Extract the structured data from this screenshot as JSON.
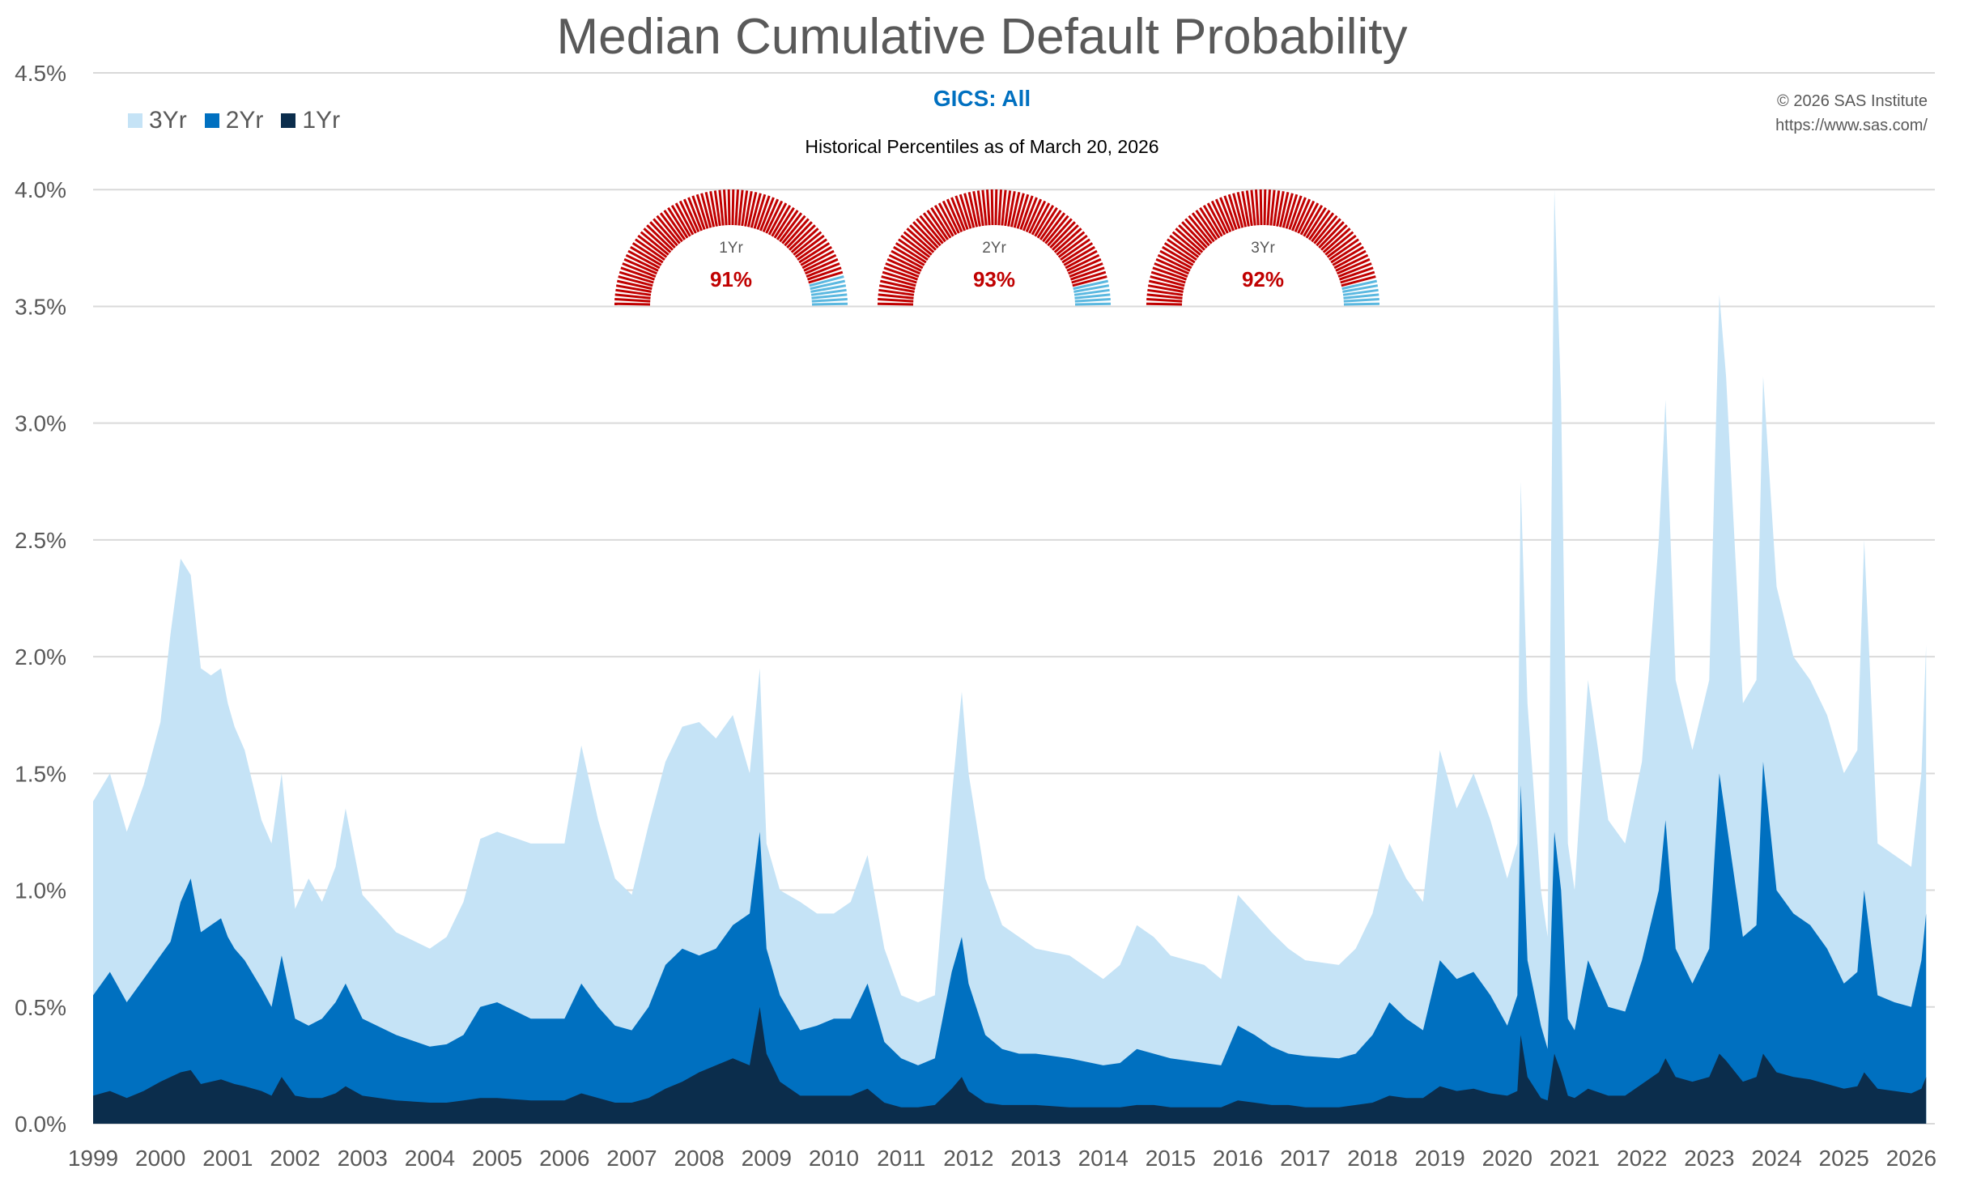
{
  "chart_data": {
    "type": "area",
    "title": "Median Cumulative Default Probability",
    "subtitle": "GICS: All",
    "note": "Historical Percentiles as of March 20, 2026",
    "copyright": [
      "© 2026 SAS Institute",
      "https://www.sas.com/"
    ],
    "xlabel": "",
    "ylabel": "",
    "xlim": [
      1999,
      2026.35
    ],
    "ylim": [
      0,
      4.5
    ],
    "y_ticks": [
      "0.0%",
      "0.5%",
      "1.0%",
      "1.5%",
      "2.0%",
      "2.5%",
      "3.0%",
      "3.5%",
      "4.0%",
      "4.5%"
    ],
    "x_ticks": [
      "1999",
      "2000",
      "2001",
      "2002",
      "2003",
      "2004",
      "2005",
      "2006",
      "2007",
      "2008",
      "2009",
      "2010",
      "2011",
      "2012",
      "2013",
      "2014",
      "2015",
      "2016",
      "2017",
      "2018",
      "2019",
      "2020",
      "2021",
      "2022",
      "2023",
      "2024",
      "2025",
      "2026"
    ],
    "legend": [
      "3Yr",
      "2Yr",
      "1Yr"
    ],
    "x": [
      1999.0,
      1999.25,
      1999.5,
      1999.75,
      2000.0,
      2000.15,
      2000.3,
      2000.45,
      2000.6,
      2000.75,
      2000.9,
      2001.0,
      2001.1,
      2001.25,
      2001.5,
      2001.65,
      2001.8,
      2002.0,
      2002.2,
      2002.4,
      2002.6,
      2002.75,
      2003.0,
      2003.5,
      2004.0,
      2004.25,
      2004.5,
      2004.75,
      2005.0,
      2005.5,
      2006.0,
      2006.25,
      2006.5,
      2006.75,
      2007.0,
      2007.25,
      2007.5,
      2007.75,
      2008.0,
      2008.25,
      2008.5,
      2008.75,
      2008.9,
      2009.0,
      2009.2,
      2009.5,
      2009.75,
      2010.0,
      2010.25,
      2010.5,
      2010.75,
      2011.0,
      2011.25,
      2011.5,
      2011.75,
      2011.9,
      2012.0,
      2012.25,
      2012.5,
      2012.75,
      2013.0,
      2013.5,
      2014.0,
      2014.25,
      2014.5,
      2014.75,
      2015.0,
      2015.5,
      2015.75,
      2016.0,
      2016.25,
      2016.5,
      2016.75,
      2017.0,
      2017.5,
      2017.75,
      2018.0,
      2018.25,
      2018.5,
      2018.75,
      2019.0,
      2019.25,
      2019.5,
      2019.75,
      2020.0,
      2020.15,
      2020.2,
      2020.3,
      2020.5,
      2020.6,
      2020.7,
      2020.8,
      2020.9,
      2021.0,
      2021.2,
      2021.5,
      2021.75,
      2022.0,
      2022.25,
      2022.35,
      2022.5,
      2022.75,
      2023.0,
      2023.15,
      2023.25,
      2023.5,
      2023.7,
      2023.8,
      2024.0,
      2024.25,
      2024.5,
      2024.75,
      2025.0,
      2025.2,
      2025.3,
      2025.5,
      2025.75,
      2026.0,
      2026.15,
      2026.22
    ],
    "series": [
      {
        "name": "3Yr",
        "color": "#C5E3F6",
        "values": [
          1.38,
          1.5,
          1.25,
          1.45,
          1.72,
          2.1,
          2.42,
          2.35,
          1.95,
          1.92,
          1.95,
          1.8,
          1.7,
          1.6,
          1.3,
          1.2,
          1.5,
          0.92,
          1.05,
          0.95,
          1.1,
          1.35,
          0.98,
          0.82,
          0.75,
          0.8,
          0.95,
          1.22,
          1.25,
          1.2,
          1.2,
          1.62,
          1.3,
          1.05,
          0.98,
          1.28,
          1.55,
          1.7,
          1.72,
          1.65,
          1.75,
          1.5,
          1.95,
          1.2,
          1.0,
          0.95,
          0.9,
          0.9,
          0.95,
          1.15,
          0.75,
          0.55,
          0.52,
          0.55,
          1.4,
          1.85,
          1.5,
          1.05,
          0.85,
          0.8,
          0.75,
          0.72,
          0.62,
          0.68,
          0.85,
          0.8,
          0.72,
          0.68,
          0.62,
          0.98,
          0.9,
          0.82,
          0.75,
          0.7,
          0.68,
          0.75,
          0.9,
          1.2,
          1.05,
          0.95,
          1.6,
          1.35,
          1.5,
          1.3,
          1.05,
          1.2,
          2.75,
          1.8,
          1.0,
          0.8,
          4.0,
          3.1,
          1.2,
          1.0,
          1.9,
          1.3,
          1.2,
          1.55,
          2.5,
          3.1,
          1.9,
          1.6,
          1.9,
          3.55,
          3.2,
          1.8,
          1.9,
          3.2,
          2.3,
          2.0,
          1.9,
          1.75,
          1.5,
          1.6,
          2.5,
          1.2,
          1.15,
          1.1,
          1.5,
          2.05
        ]
      },
      {
        "name": "2Yr",
        "color": "#0070C0",
        "values": [
          0.55,
          0.65,
          0.52,
          0.62,
          0.72,
          0.78,
          0.95,
          1.05,
          0.82,
          0.85,
          0.88,
          0.8,
          0.75,
          0.7,
          0.58,
          0.5,
          0.72,
          0.45,
          0.42,
          0.45,
          0.52,
          0.6,
          0.45,
          0.38,
          0.33,
          0.34,
          0.38,
          0.5,
          0.52,
          0.45,
          0.45,
          0.6,
          0.5,
          0.42,
          0.4,
          0.5,
          0.68,
          0.75,
          0.72,
          0.75,
          0.85,
          0.9,
          1.25,
          0.75,
          0.55,
          0.4,
          0.42,
          0.45,
          0.45,
          0.6,
          0.35,
          0.28,
          0.25,
          0.28,
          0.65,
          0.8,
          0.6,
          0.38,
          0.32,
          0.3,
          0.3,
          0.28,
          0.25,
          0.26,
          0.32,
          0.3,
          0.28,
          0.26,
          0.25,
          0.42,
          0.38,
          0.33,
          0.3,
          0.29,
          0.28,
          0.3,
          0.38,
          0.52,
          0.45,
          0.4,
          0.7,
          0.62,
          0.65,
          0.55,
          0.42,
          0.55,
          1.45,
          0.7,
          0.42,
          0.32,
          1.25,
          1.0,
          0.45,
          0.4,
          0.7,
          0.5,
          0.48,
          0.7,
          1.0,
          1.3,
          0.75,
          0.6,
          0.75,
          1.5,
          1.3,
          0.8,
          0.85,
          1.55,
          1.0,
          0.9,
          0.85,
          0.75,
          0.6,
          0.65,
          1.0,
          0.55,
          0.52,
          0.5,
          0.7,
          0.9
        ]
      },
      {
        "name": "1Yr",
        "color": "#0B2D4C",
        "values": [
          0.12,
          0.14,
          0.11,
          0.14,
          0.18,
          0.2,
          0.22,
          0.23,
          0.17,
          0.18,
          0.19,
          0.18,
          0.17,
          0.16,
          0.14,
          0.12,
          0.2,
          0.12,
          0.11,
          0.11,
          0.13,
          0.16,
          0.12,
          0.1,
          0.09,
          0.09,
          0.1,
          0.11,
          0.11,
          0.1,
          0.1,
          0.13,
          0.11,
          0.09,
          0.09,
          0.11,
          0.15,
          0.18,
          0.22,
          0.25,
          0.28,
          0.25,
          0.5,
          0.3,
          0.18,
          0.12,
          0.12,
          0.12,
          0.12,
          0.15,
          0.09,
          0.07,
          0.07,
          0.08,
          0.15,
          0.2,
          0.14,
          0.09,
          0.08,
          0.08,
          0.08,
          0.07,
          0.07,
          0.07,
          0.08,
          0.08,
          0.07,
          0.07,
          0.07,
          0.1,
          0.09,
          0.08,
          0.08,
          0.07,
          0.07,
          0.08,
          0.09,
          0.12,
          0.11,
          0.11,
          0.16,
          0.14,
          0.15,
          0.13,
          0.12,
          0.14,
          0.38,
          0.2,
          0.11,
          0.1,
          0.3,
          0.22,
          0.12,
          0.11,
          0.15,
          0.12,
          0.12,
          0.17,
          0.22,
          0.28,
          0.2,
          0.18,
          0.2,
          0.3,
          0.27,
          0.18,
          0.2,
          0.3,
          0.22,
          0.2,
          0.19,
          0.17,
          0.15,
          0.16,
          0.22,
          0.15,
          0.14,
          0.13,
          0.15,
          0.2
        ]
      }
    ],
    "gauges": [
      {
        "label": "1Yr",
        "value_text": "91%",
        "percentile": 0.91
      },
      {
        "label": "2Yr",
        "value_text": "93%",
        "percentile": 0.93
      },
      {
        "label": "3Yr",
        "value_text": "92%",
        "percentile": 0.92
      }
    ],
    "colors": {
      "gauge_high": "#C00000",
      "gauge_low": "#5BB8E0",
      "grid": "#D9D9D9",
      "axis_text": "#595959"
    }
  }
}
